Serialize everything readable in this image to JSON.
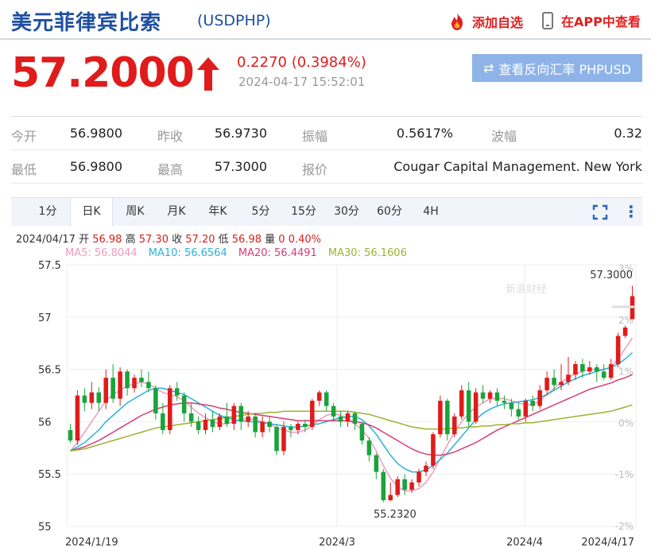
{
  "header": {
    "title": "美元菲律宾比索",
    "code": "(USDPHP)",
    "add_watch": "添加自选",
    "open_app": "在APP中查看"
  },
  "quote": {
    "price": "57.2000",
    "change": "0.2270 (0.3984%)",
    "time": "2024-04-17 15:52:01",
    "reverse_button": "查看反向汇率 PHPUSD"
  },
  "info": {
    "rows": [
      [
        {
          "label": "今开",
          "value": "56.9800"
        },
        {
          "label": "昨收",
          "value": "56.9730"
        },
        {
          "label": "振幅",
          "value": "0.5617%"
        },
        {
          "label": "波幅",
          "value": "0.32"
        }
      ],
      [
        {
          "label": "最低",
          "value": "56.9800"
        },
        {
          "label": "最高",
          "value": "57.3000"
        },
        {
          "label": "报价",
          "value": "Cougar Capital Management. New York"
        }
      ]
    ]
  },
  "tabs": [
    "1分",
    "日K",
    "周K",
    "月K",
    "年K",
    "5分",
    "15分",
    "30分",
    "60分",
    "4H"
  ],
  "active_tab": "日K",
  "ohlc_line": {
    "date": "2024/04/17",
    "open_label": "开",
    "open": "56.98",
    "high_label": "高",
    "high": "57.30",
    "close_label": "收",
    "close": "57.20",
    "low_label": "低",
    "low": "56.98",
    "volume_label": "量",
    "volume": "0",
    "pct": "0.40%"
  },
  "ma_legend": [
    {
      "text": "MA5: 56.8044",
      "color": "#ef9cba"
    },
    {
      "text": "MA10: 56.6564",
      "color": "#27b3d8"
    },
    {
      "text": "MA20: 56.4491",
      "color": "#d73c76"
    },
    {
      "text": "MA30: 56.1606",
      "color": "#9db22f"
    }
  ],
  "watermark": "新浪财经",
  "colors": {
    "up": "#e01b1b",
    "down": "#1aa33a",
    "accent": "#1f4fa0"
  },
  "chart_data": {
    "type": "candlestick",
    "y_ticks": [
      "57.5",
      "57",
      "56.5",
      "56",
      "55.5",
      "55"
    ],
    "ylim": [
      55,
      57.5
    ],
    "pct_ticks": [
      "3%",
      "2%",
      "1%",
      "0%",
      "-1%",
      "-2%"
    ],
    "x_ticks": [
      "2024/1/19",
      "2024/3",
      "2024/4",
      "2024/4/17"
    ],
    "annotations": {
      "max": "57.3000",
      "min": "55.2320"
    },
    "candles": [
      [
        55.92,
        55.82,
        55.98,
        55.8
      ],
      [
        55.82,
        56.25,
        56.3,
        55.78
      ],
      [
        56.25,
        56.18,
        56.32,
        56.1
      ],
      [
        56.18,
        56.28,
        56.38,
        56.12
      ],
      [
        56.28,
        56.18,
        56.33,
        56.1
      ],
      [
        56.18,
        56.42,
        56.5,
        56.12
      ],
      [
        56.42,
        56.22,
        56.55,
        56.18
      ],
      [
        56.22,
        56.48,
        56.52,
        56.15
      ],
      [
        56.48,
        56.32,
        56.5,
        56.25
      ],
      [
        56.32,
        56.42,
        56.45,
        56.28
      ],
      [
        56.42,
        56.38,
        56.5,
        56.33
      ],
      [
        56.38,
        56.32,
        56.48,
        56.28
      ],
      [
        56.32,
        56.08,
        56.35,
        56.02
      ],
      [
        56.08,
        55.92,
        56.18,
        55.88
      ],
      [
        55.92,
        56.32,
        56.35,
        55.88
      ],
      [
        56.32,
        56.25,
        56.38,
        56.2
      ],
      [
        56.25,
        56.08,
        56.28,
        56.0
      ],
      [
        56.08,
        56.0,
        56.18,
        55.95
      ],
      [
        56.0,
        55.92,
        56.05,
        55.88
      ],
      [
        55.92,
        56.02,
        56.08,
        55.88
      ],
      [
        56.02,
        55.95,
        56.1,
        55.9
      ],
      [
        55.95,
        56.05,
        56.08,
        55.92
      ],
      [
        56.05,
        55.98,
        56.18,
        55.95
      ],
      [
        55.98,
        56.15,
        56.18,
        55.92
      ],
      [
        56.15,
        56.0,
        56.18,
        55.92
      ],
      [
        56.0,
        56.05,
        56.1,
        55.95
      ],
      [
        56.05,
        55.9,
        56.08,
        55.85
      ],
      [
        55.9,
        56.0,
        56.05,
        55.85
      ],
      [
        56.0,
        55.95,
        56.05,
        55.9
      ],
      [
        55.95,
        55.72,
        55.98,
        55.68
      ],
      [
        55.72,
        55.95,
        56.0,
        55.68
      ],
      [
        55.95,
        55.92,
        55.98,
        55.85
      ],
      [
        55.92,
        55.98,
        56.0,
        55.88
      ],
      [
        55.98,
        55.95,
        56.02,
        55.9
      ],
      [
        55.95,
        56.2,
        56.22,
        55.92
      ],
      [
        56.2,
        56.28,
        56.3,
        56.15
      ],
      [
        56.28,
        56.15,
        56.3,
        56.1
      ],
      [
        56.15,
        56.05,
        56.18,
        56.0
      ],
      [
        56.05,
        56.0,
        56.1,
        55.95
      ],
      [
        56.0,
        56.08,
        56.1,
        55.95
      ],
      [
        56.08,
        55.98,
        56.1,
        55.92
      ],
      [
        55.98,
        55.82,
        56.0,
        55.78
      ],
      [
        55.82,
        55.68,
        55.85,
        55.62
      ],
      [
        55.68,
        55.52,
        55.7,
        55.45
      ],
      [
        55.52,
        55.25,
        55.55,
        55.23
      ],
      [
        55.25,
        55.3,
        55.42,
        55.24
      ],
      [
        55.3,
        55.45,
        55.48,
        55.28
      ],
      [
        55.45,
        55.35,
        55.5,
        55.3
      ],
      [
        55.35,
        55.42,
        55.45,
        55.32
      ],
      [
        55.42,
        55.52,
        55.55,
        55.38
      ],
      [
        55.52,
        55.58,
        55.62,
        55.48
      ],
      [
        55.58,
        55.88,
        55.9,
        55.55
      ],
      [
        55.88,
        56.2,
        56.25,
        55.85
      ],
      [
        56.2,
        55.88,
        56.22,
        55.82
      ],
      [
        55.88,
        56.05,
        56.08,
        55.85
      ],
      [
        56.05,
        56.3,
        56.35,
        56.02
      ],
      [
        56.3,
        56.0,
        56.38,
        55.95
      ],
      [
        56.0,
        56.28,
        56.32,
        55.98
      ],
      [
        56.28,
        56.22,
        56.35,
        56.18
      ],
      [
        56.22,
        56.28,
        56.3,
        56.18
      ],
      [
        56.28,
        56.2,
        56.32,
        56.15
      ],
      [
        56.2,
        56.18,
        56.25,
        56.12
      ],
      [
        56.18,
        56.12,
        56.22,
        56.05
      ],
      [
        56.12,
        56.05,
        56.18,
        56.02
      ],
      [
        56.05,
        56.2,
        56.22,
        56.0
      ],
      [
        56.2,
        56.15,
        56.25,
        56.1
      ],
      [
        56.15,
        56.3,
        56.35,
        56.12
      ],
      [
        56.3,
        56.42,
        56.48,
        56.25
      ],
      [
        56.42,
        56.35,
        56.5,
        56.3
      ],
      [
        56.35,
        56.38,
        56.55,
        56.3
      ],
      [
        56.38,
        56.45,
        56.62,
        56.35
      ],
      [
        56.45,
        56.55,
        56.58,
        56.4
      ],
      [
        56.55,
        56.48,
        56.6,
        56.42
      ],
      [
        56.48,
        56.52,
        56.58,
        56.45
      ],
      [
        56.52,
        56.48,
        56.55,
        56.38
      ],
      [
        56.48,
        56.42,
        56.55,
        56.4
      ],
      [
        56.42,
        56.55,
        56.6,
        56.4
      ],
      [
        56.55,
        56.82,
        56.85,
        56.52
      ],
      [
        56.82,
        56.9,
        56.92,
        56.8
      ],
      [
        56.98,
        57.2,
        57.3,
        56.98
      ]
    ],
    "ma_series": {
      "ma5": [
        55.72,
        55.8,
        55.9,
        56.0,
        56.1,
        56.2,
        56.26,
        56.3,
        56.34,
        56.36,
        56.38,
        56.36,
        56.32,
        56.28,
        56.26,
        56.24,
        56.2,
        56.14,
        56.08,
        56.04,
        56.0,
        55.98,
        55.98,
        56.0,
        56.02,
        56.03,
        56.02,
        56.0,
        55.98,
        55.94,
        55.92,
        55.9,
        55.9,
        55.92,
        55.96,
        56.02,
        56.06,
        56.08,
        56.06,
        56.02,
        55.98,
        55.92,
        55.84,
        55.72,
        55.58,
        55.46,
        55.38,
        55.34,
        55.34,
        55.36,
        55.42,
        55.52,
        55.65,
        55.78,
        55.9,
        56.0,
        56.08,
        56.14,
        56.18,
        56.22,
        56.22,
        56.22,
        56.2,
        56.18,
        56.16,
        56.16,
        56.2,
        56.26,
        56.32,
        56.38,
        56.42,
        56.46,
        56.48,
        56.5,
        56.5,
        56.5,
        56.52,
        56.6,
        56.7,
        56.8
      ],
      "ma10": [
        55.72,
        55.76,
        55.8,
        55.86,
        55.92,
        56.0,
        56.06,
        56.12,
        56.18,
        56.22,
        56.26,
        56.3,
        56.32,
        56.32,
        56.3,
        56.28,
        56.26,
        56.22,
        56.18,
        56.14,
        56.1,
        56.06,
        56.04,
        56.02,
        56.01,
        56.0,
        56.0,
        55.99,
        55.98,
        55.97,
        55.96,
        55.95,
        55.95,
        55.96,
        55.97,
        55.98,
        56.0,
        56.02,
        56.04,
        56.05,
        56.05,
        56.02,
        55.96,
        55.88,
        55.78,
        55.68,
        55.6,
        55.55,
        55.52,
        55.52,
        55.54,
        55.58,
        55.64,
        55.7,
        55.78,
        55.86,
        55.94,
        56.02,
        56.08,
        56.12,
        56.15,
        56.17,
        56.18,
        56.19,
        56.2,
        56.21,
        56.23,
        56.26,
        56.3,
        56.34,
        56.38,
        56.41,
        56.44,
        56.46,
        56.48,
        56.5,
        56.52,
        56.55,
        56.6,
        56.66
      ],
      "ma20": [
        55.72,
        55.74,
        55.76,
        55.79,
        55.82,
        55.86,
        55.9,
        55.94,
        55.98,
        56.02,
        56.06,
        56.09,
        56.12,
        56.14,
        56.16,
        56.17,
        56.18,
        56.18,
        56.17,
        56.16,
        56.15,
        56.13,
        56.12,
        56.1,
        56.09,
        56.08,
        56.07,
        56.06,
        56.05,
        56.04,
        56.03,
        56.02,
        56.01,
        56.01,
        56.01,
        56.01,
        56.01,
        56.01,
        56.01,
        56.01,
        56.0,
        55.99,
        55.97,
        55.94,
        55.9,
        55.86,
        55.82,
        55.78,
        55.74,
        55.71,
        55.69,
        55.68,
        55.68,
        55.69,
        55.71,
        55.74,
        55.77,
        55.8,
        55.84,
        55.88,
        55.92,
        55.95,
        55.98,
        56.01,
        56.04,
        56.07,
        56.1,
        56.13,
        56.16,
        56.19,
        56.22,
        56.25,
        56.28,
        56.31,
        56.33,
        56.35,
        56.37,
        56.4,
        56.42,
        56.45
      ],
      "ma30": [
        55.72,
        55.73,
        55.74,
        55.76,
        55.78,
        55.8,
        55.82,
        55.84,
        55.86,
        55.88,
        55.9,
        55.92,
        55.94,
        55.95,
        55.96,
        55.97,
        55.98,
        55.99,
        56.0,
        56.01,
        56.02,
        56.03,
        56.04,
        56.05,
        56.06,
        56.07,
        56.08,
        56.08,
        56.09,
        56.09,
        56.1,
        56.1,
        56.1,
        56.1,
        56.1,
        56.1,
        56.1,
        56.1,
        56.1,
        56.1,
        56.09,
        56.08,
        56.07,
        56.05,
        56.03,
        56.01,
        55.99,
        55.97,
        55.95,
        55.94,
        55.93,
        55.93,
        55.93,
        55.93,
        55.94,
        55.94,
        55.95,
        55.95,
        55.96,
        55.96,
        55.97,
        55.97,
        55.98,
        55.98,
        55.99,
        55.99,
        56.0,
        56.01,
        56.02,
        56.03,
        56.04,
        56.05,
        56.06,
        56.07,
        56.08,
        56.09,
        56.1,
        56.12,
        56.14,
        56.16
      ]
    }
  }
}
